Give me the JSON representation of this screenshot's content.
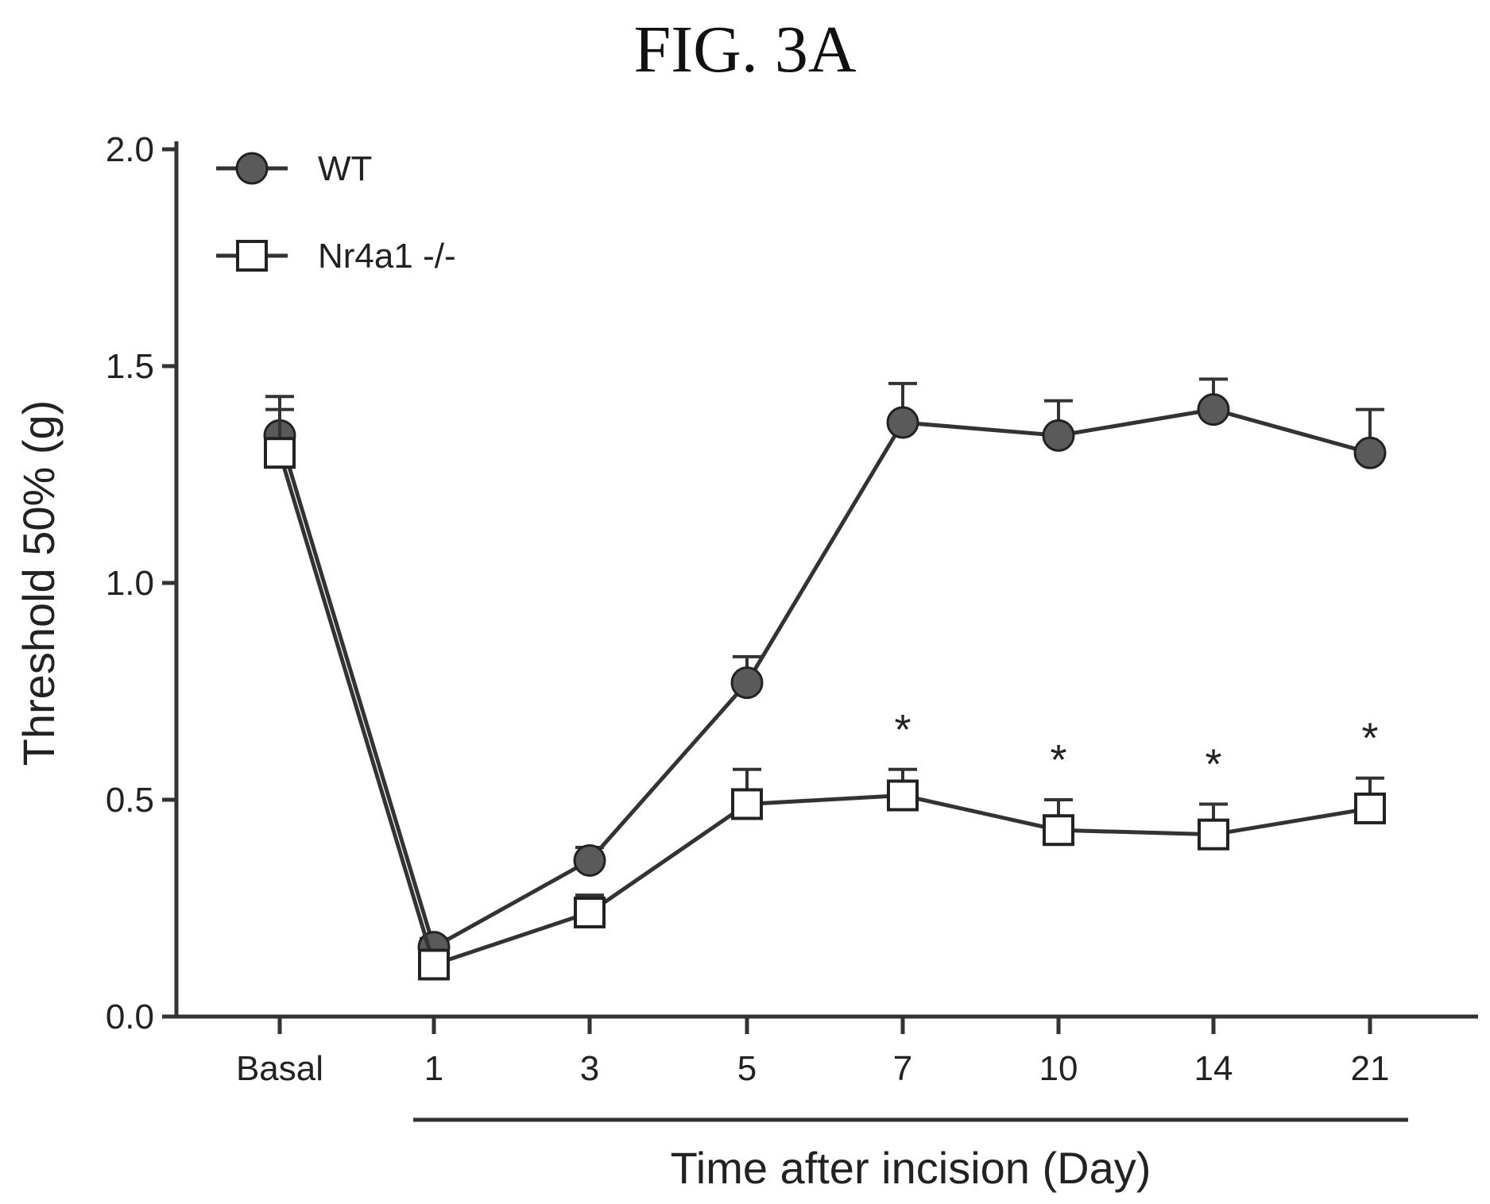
{
  "figure_title": "FIG. 3A",
  "chart_data": {
    "type": "line",
    "xlabel": "Time after incision (Day)",
    "ylabel": "Threshold 50% (g)",
    "ylim": [
      0,
      2.0
    ],
    "yticks": [
      "0.0",
      "0.5",
      "1.0",
      "1.5",
      "2.0"
    ],
    "categories": [
      "Basal",
      "1",
      "3",
      "5",
      "7",
      "10",
      "14",
      "21"
    ],
    "legend_position": "top-left",
    "grid": false,
    "series": [
      {
        "name": "WT",
        "marker": "filled-circle",
        "color": "#555555",
        "values": [
          1.34,
          0.16,
          0.36,
          0.77,
          1.37,
          1.34,
          1.4,
          1.3
        ],
        "error": [
          0.09,
          0.02,
          0.03,
          0.06,
          0.09,
          0.08,
          0.07,
          0.1
        ]
      },
      {
        "name": "Nr4a1 -/-",
        "marker": "open-square",
        "color": "#333333",
        "values": [
          1.3,
          0.12,
          0.24,
          0.49,
          0.51,
          0.43,
          0.42,
          0.48
        ],
        "error": [
          0.1,
          0.02,
          0.04,
          0.08,
          0.06,
          0.07,
          0.07,
          0.07
        ]
      }
    ],
    "significance": [
      {
        "category": "7",
        "label": "*"
      },
      {
        "category": "10",
        "label": "*"
      },
      {
        "category": "14",
        "label": "*"
      },
      {
        "category": "21",
        "label": "*"
      }
    ]
  }
}
